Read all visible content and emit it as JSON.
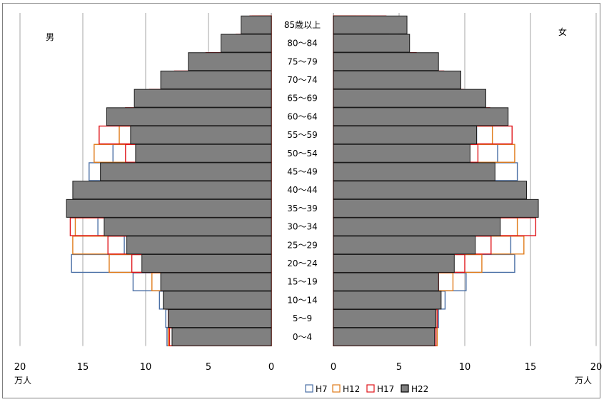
{
  "chart_data": {
    "type": "bar",
    "title": "",
    "categories": [
      "0〜4",
      "5〜9",
      "10〜14",
      "15〜19",
      "20〜24",
      "25〜29",
      "30〜34",
      "35〜39",
      "40〜44",
      "45〜49",
      "50〜54",
      "55〜59",
      "60〜64",
      "65〜69",
      "70〜74",
      "75〜79",
      "80〜84",
      "85歳以上"
    ],
    "sides": {
      "left": "男",
      "right": "女"
    },
    "unit": "万人",
    "xlim": [
      0,
      20
    ],
    "xticks": [
      "0",
      "5",
      "10",
      "15",
      "20"
    ],
    "grid": true,
    "legend_position": "bottom",
    "colors": {
      "H7": "#4a6fa5",
      "H12": "#e07b1a",
      "H17": "#e0161b",
      "H22": "#808080"
    },
    "series": [
      {
        "name": "H7",
        "male": [
          8.3,
          8.4,
          8.9,
          11.0,
          15.9,
          11.7,
          13.8,
          11.4,
          11.9,
          14.5,
          12.6,
          11.1,
          9.3,
          7.0,
          4.1,
          2.5,
          1.8,
          1.0
        ],
        "female": [
          7.9,
          8.0,
          8.5,
          10.1,
          13.8,
          13.5,
          12.2,
          10.3,
          11.2,
          14.0,
          12.5,
          10.9,
          9.1,
          7.1,
          5.2,
          3.8,
          2.6,
          1.7
        ]
      },
      {
        "name": "H12",
        "male": [
          8.2,
          7.9,
          8.5,
          9.5,
          12.9,
          15.8,
          15.6,
          13.5,
          11.1,
          11.7,
          14.1,
          12.1,
          10.4,
          8.4,
          6.1,
          3.6,
          2.4,
          1.5
        ],
        "female": [
          7.9,
          7.8,
          8.0,
          9.1,
          11.3,
          14.5,
          14.0,
          12.0,
          10.3,
          11.2,
          13.8,
          12.1,
          10.3,
          8.9,
          6.6,
          4.8,
          3.4,
          2.8
        ]
      },
      {
        "name": "H17",
        "male": [
          8.1,
          8.2,
          8.0,
          8.7,
          11.1,
          13.0,
          16.0,
          15.6,
          13.5,
          11.0,
          11.6,
          13.7,
          11.6,
          9.7,
          7.7,
          5.2,
          2.8,
          1.7
        ],
        "female": [
          7.8,
          7.9,
          7.6,
          8.0,
          10.0,
          12.0,
          15.4,
          14.4,
          12.3,
          10.4,
          11.0,
          13.6,
          11.9,
          9.9,
          8.4,
          6.3,
          4.2,
          4.0
        ]
      },
      {
        "name": "H22",
        "male": [
          7.9,
          8.2,
          8.6,
          8.8,
          10.3,
          11.5,
          13.3,
          16.3,
          15.8,
          13.6,
          10.8,
          11.2,
          13.1,
          10.9,
          8.8,
          6.6,
          4.0,
          2.4
        ],
        "female": [
          7.7,
          7.8,
          8.2,
          8.0,
          9.2,
          10.8,
          12.7,
          15.6,
          14.7,
          12.3,
          10.4,
          10.9,
          13.3,
          11.6,
          9.7,
          8.0,
          5.8,
          5.6
        ]
      }
    ]
  }
}
